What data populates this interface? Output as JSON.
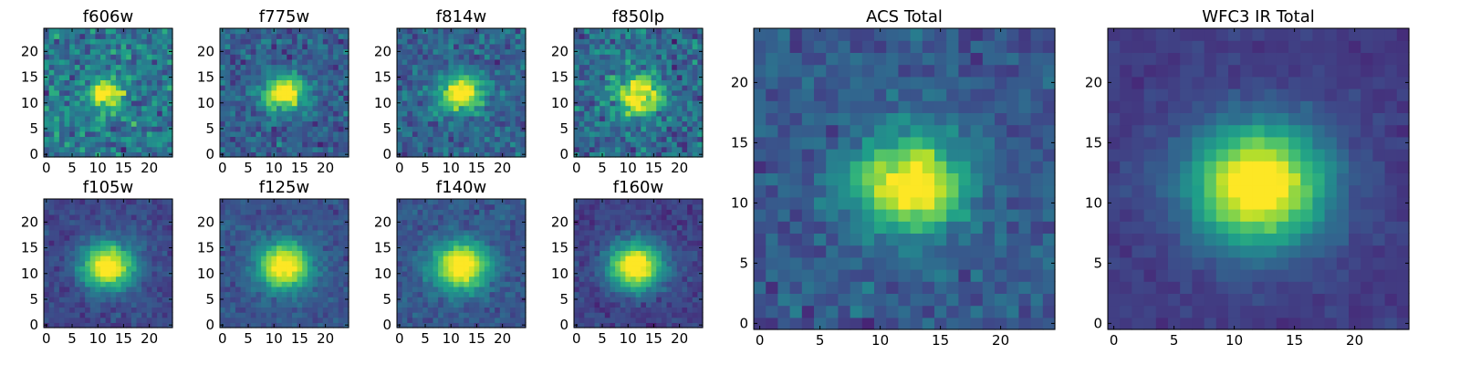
{
  "figure": {
    "colormap": "viridis",
    "axis_range": [
      0,
      24
    ],
    "grid": false
  },
  "chart_data": [
    {
      "type": "heatmap",
      "title": "f606w",
      "xticks": [
        0,
        5,
        10,
        15,
        20
      ],
      "yticks": [
        0,
        5,
        10,
        15,
        20
      ],
      "shape": [
        25,
        25
      ],
      "center": [
        11.5,
        12.0
      ],
      "sigma": [
        2.2,
        1.8
      ],
      "noise": 0.42,
      "background": 0.4,
      "seed": 11
    },
    {
      "type": "heatmap",
      "title": "f775w",
      "xticks": [
        0,
        5,
        10,
        15,
        20
      ],
      "yticks": [
        0,
        5,
        10,
        15,
        20
      ],
      "shape": [
        25,
        25
      ],
      "center": [
        12.0,
        12.0
      ],
      "sigma": [
        2.6,
        2.1
      ],
      "noise": 0.3,
      "background": 0.3,
      "seed": 23
    },
    {
      "type": "heatmap",
      "title": "f814w",
      "xticks": [
        0,
        5,
        10,
        15,
        20
      ],
      "yticks": [
        0,
        5,
        10,
        15,
        20
      ],
      "shape": [
        25,
        25
      ],
      "center": [
        12.0,
        12.0
      ],
      "sigma": [
        2.7,
        2.2
      ],
      "noise": 0.3,
      "background": 0.32,
      "seed": 37
    },
    {
      "type": "heatmap",
      "title": "f850lp",
      "xticks": [
        0,
        5,
        10,
        15,
        20
      ],
      "yticks": [
        0,
        5,
        10,
        15,
        20
      ],
      "shape": [
        25,
        25
      ],
      "center": [
        12.0,
        11.5
      ],
      "sigma": [
        2.8,
        2.4
      ],
      "noise": 0.38,
      "background": 0.35,
      "seed": 41
    },
    {
      "type": "heatmap",
      "title": "f105w",
      "xticks": [
        0,
        5,
        10,
        15,
        20
      ],
      "yticks": [
        0,
        5,
        10,
        15,
        20
      ],
      "shape": [
        25,
        25
      ],
      "center": [
        12.0,
        11.5
      ],
      "sigma": [
        3.2,
        2.8
      ],
      "noise": 0.16,
      "background": 0.22,
      "seed": 53
    },
    {
      "type": "heatmap",
      "title": "f125w",
      "xticks": [
        0,
        5,
        10,
        15,
        20
      ],
      "yticks": [
        0,
        5,
        10,
        15,
        20
      ],
      "shape": [
        25,
        25
      ],
      "center": [
        12.0,
        11.5
      ],
      "sigma": [
        3.3,
        2.9
      ],
      "noise": 0.16,
      "background": 0.26,
      "seed": 61
    },
    {
      "type": "heatmap",
      "title": "f140w",
      "xticks": [
        0,
        5,
        10,
        15,
        20
      ],
      "yticks": [
        0,
        5,
        10,
        15,
        20
      ],
      "shape": [
        25,
        25
      ],
      "center": [
        12.0,
        11.5
      ],
      "sigma": [
        3.4,
        3.0
      ],
      "noise": 0.17,
      "background": 0.27,
      "seed": 71
    },
    {
      "type": "heatmap",
      "title": "f160w",
      "xticks": [
        0,
        5,
        10,
        15,
        20
      ],
      "yticks": [
        0,
        5,
        10,
        15,
        20
      ],
      "shape": [
        25,
        25
      ],
      "center": [
        11.5,
        11.5
      ],
      "sigma": [
        3.3,
        2.9
      ],
      "noise": 0.16,
      "background": 0.2,
      "seed": 83
    },
    {
      "type": "heatmap",
      "title": "ACS Total",
      "xticks": [
        0,
        5,
        10,
        15,
        20
      ],
      "yticks": [
        0,
        5,
        10,
        15,
        20
      ],
      "shape": [
        25,
        25
      ],
      "center": [
        12.5,
        11.5
      ],
      "sigma": [
        2.9,
        2.4
      ],
      "noise": 0.22,
      "background": 0.28,
      "seed": 97
    },
    {
      "type": "heatmap",
      "title": "WFC3 IR Total",
      "xticks": [
        0,
        5,
        10,
        15,
        20
      ],
      "yticks": [
        0,
        5,
        10,
        15,
        20
      ],
      "shape": [
        25,
        25
      ],
      "center": [
        12.0,
        11.5
      ],
      "sigma": [
        3.6,
        3.2
      ],
      "noise": 0.09,
      "background": 0.18,
      "seed": 101
    }
  ]
}
